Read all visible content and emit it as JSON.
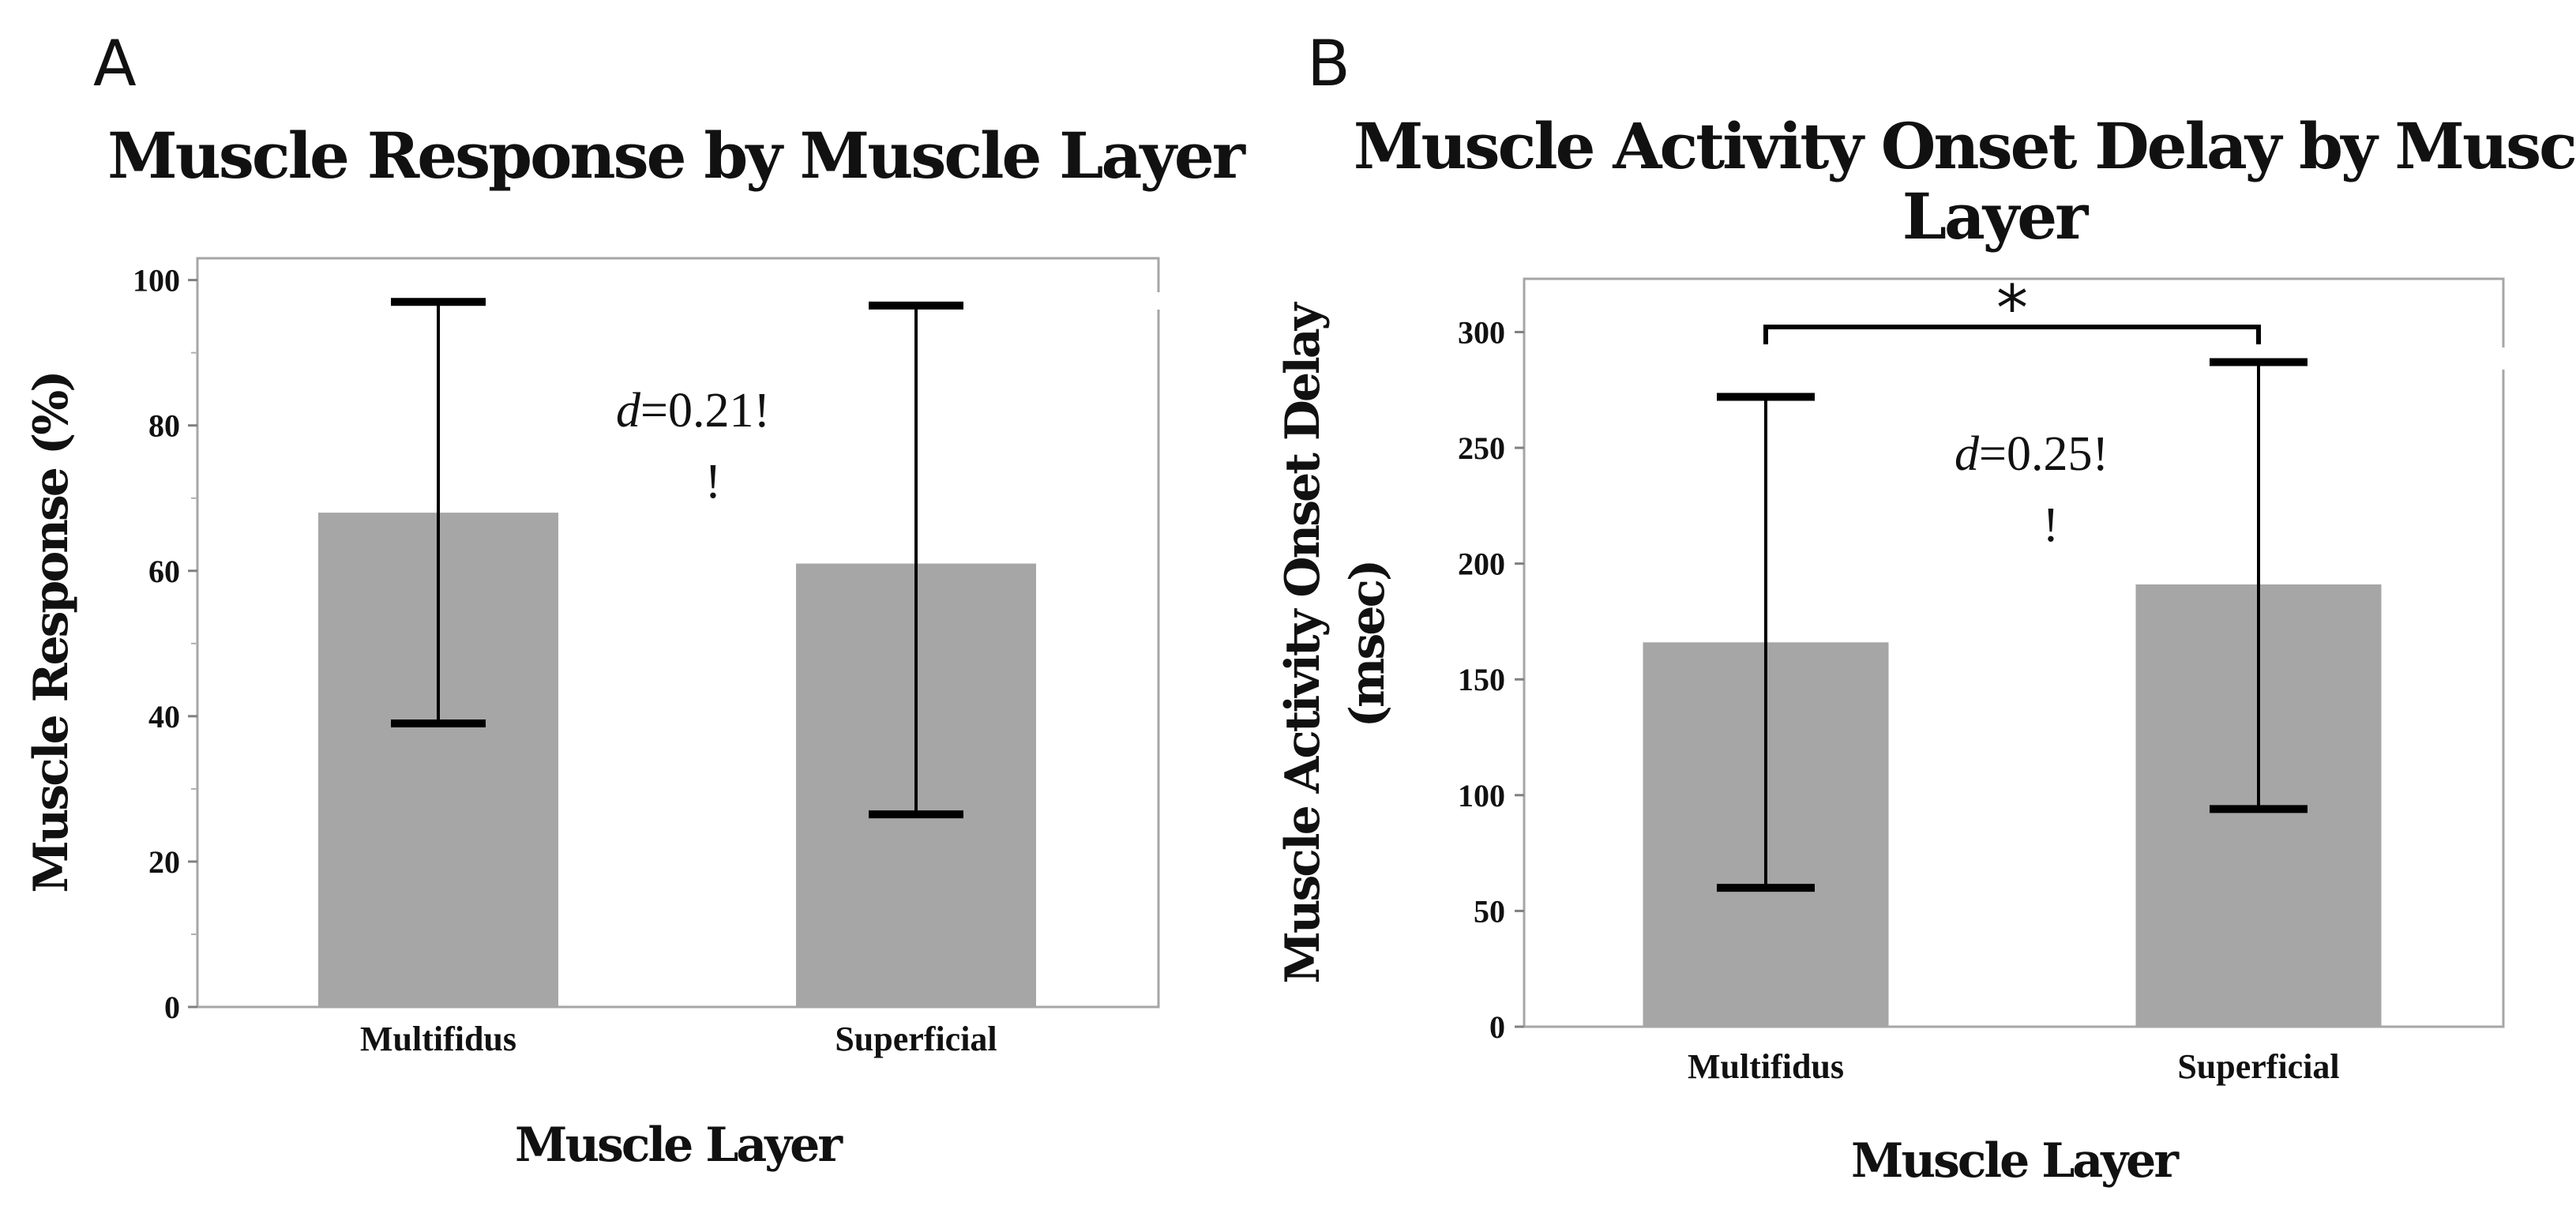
{
  "panels": [
    {
      "letter": "A",
      "annotation": {
        "d_symbol": "d",
        "d_value": "=0.21",
        "marker": "!",
        "marker_below": "!"
      },
      "significance": null
    },
    {
      "letter": "B",
      "annotation": {
        "d_symbol": "d",
        "d_value": "=0.25",
        "marker": "!",
        "marker_below": "!"
      },
      "significance": {
        "symbol": "*",
        "between": [
          "Multifidus",
          "Superficial"
        ]
      }
    }
  ],
  "chart_data": [
    {
      "type": "bar",
      "title": "Muscle Response by Muscle Layer",
      "title_lines": [
        "Muscle Response by Muscle Layer"
      ],
      "xlabel": "Muscle Layer",
      "ylabel": "Muscle Response (%)",
      "ylabel_lines": [
        "Muscle Response (%)"
      ],
      "categories": [
        "Multifidus",
        "Superficial"
      ],
      "values": [
        68,
        61
      ],
      "error_low": [
        39,
        26.5
      ],
      "error_high": [
        97,
        96.5
      ],
      "ylim": [
        0,
        103
      ],
      "yticks": [
        0,
        20,
        40,
        60,
        80,
        100
      ],
      "ytick_labels": [
        "0",
        "20",
        "40",
        "60",
        "80",
        "100"
      ],
      "grid": false,
      "legend": null
    },
    {
      "type": "bar",
      "title": "Muscle Activity Onset Delay by Muscle Layer",
      "title_lines": [
        "Muscle Activity Onset Delay by Muscle",
        "Layer"
      ],
      "xlabel": "Muscle Layer",
      "ylabel": "Muscle Activity Onset Delay (msec)",
      "ylabel_lines": [
        "Muscle Activity Onset Delay",
        "(msec)"
      ],
      "categories": [
        "Multifidus",
        "Superficial"
      ],
      "values": [
        166,
        191
      ],
      "error_low": [
        60,
        94
      ],
      "error_high": [
        272,
        287
      ],
      "ylim": [
        0,
        323
      ],
      "yticks": [
        0,
        50,
        100,
        150,
        200,
        250,
        300
      ],
      "ytick_labels": [
        "0",
        "50",
        "100",
        "150",
        "200",
        "250",
        "300"
      ],
      "grid": false,
      "legend": null
    }
  ]
}
